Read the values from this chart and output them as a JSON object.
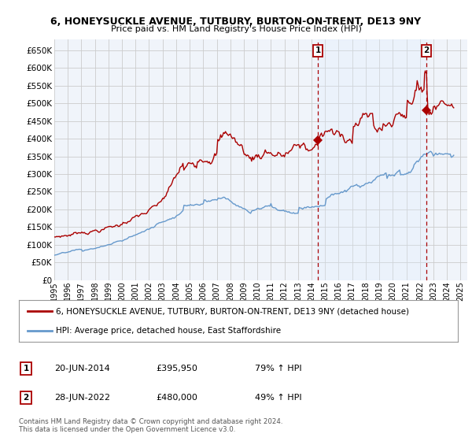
{
  "title_line1": "6, HONEYSUCKLE AVENUE, TUTBURY, BURTON-ON-TRENT, DE13 9NY",
  "title_line2": "Price paid vs. HM Land Registry's House Price Index (HPI)",
  "ylabel_ticks": [
    "£0",
    "£50K",
    "£100K",
    "£150K",
    "£200K",
    "£250K",
    "£300K",
    "£350K",
    "£400K",
    "£450K",
    "£500K",
    "£550K",
    "£600K",
    "£650K"
  ],
  "ytick_vals": [
    0,
    50000,
    100000,
    150000,
    200000,
    250000,
    300000,
    350000,
    400000,
    450000,
    500000,
    550000,
    600000,
    650000
  ],
  "ylim": [
    0,
    680000
  ],
  "xlim_start": 1995.0,
  "xlim_end": 2025.5,
  "red_line_color": "#aa0000",
  "blue_line_color": "#6699cc",
  "shade_color": "#ddeeff",
  "background_color": "#ffffff",
  "plot_bg_color": "#f0f4fa",
  "grid_color": "#cccccc",
  "sale1_x": 2014.47,
  "sale1_y": 395950,
  "sale2_x": 2022.49,
  "sale2_y": 480000,
  "legend_label1": "6, HONEYSUCKLE AVENUE, TUTBURY, BURTON-ON-TRENT, DE13 9NY (detached house)",
  "legend_label2": "HPI: Average price, detached house, East Staffordshire",
  "table_row1": [
    "1",
    "20-JUN-2014",
    "£395,950",
    "79% ↑ HPI"
  ],
  "table_row2": [
    "2",
    "28-JUN-2022",
    "£480,000",
    "49% ↑ HPI"
  ],
  "footer_text": "Contains HM Land Registry data © Crown copyright and database right 2024.\nThis data is licensed under the Open Government Licence v3.0.",
  "xtick_years": [
    1995,
    1996,
    1997,
    1998,
    1999,
    2000,
    2001,
    2002,
    2003,
    2004,
    2005,
    2006,
    2007,
    2008,
    2009,
    2010,
    2011,
    2012,
    2013,
    2014,
    2015,
    2016,
    2017,
    2018,
    2019,
    2020,
    2021,
    2022,
    2023,
    2024,
    2025
  ]
}
